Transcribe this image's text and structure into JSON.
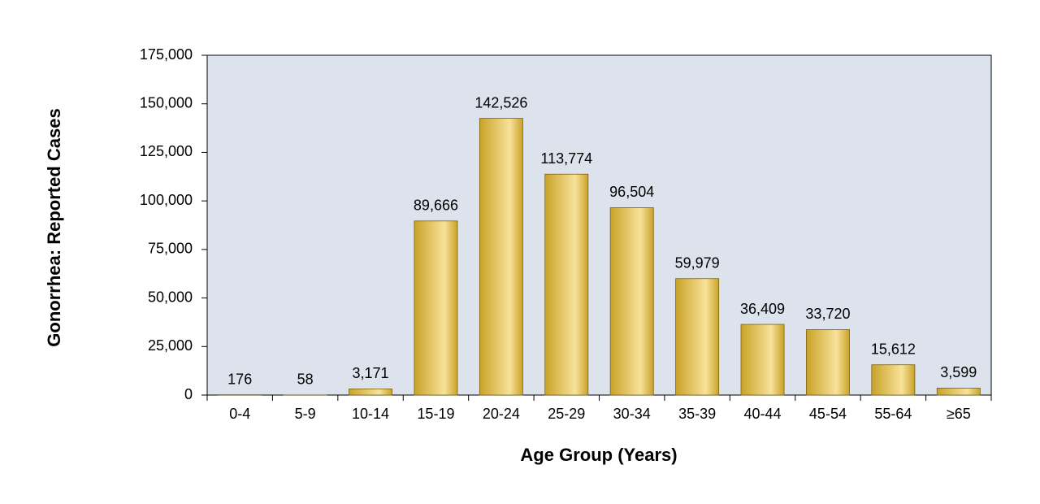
{
  "chart_data": {
    "type": "bar",
    "x_label": "Age Group (Years)",
    "y_label": "Gonorrhea: Reported Cases",
    "categories": [
      "0-4",
      "5-9",
      "10-14",
      "15-19",
      "20-24",
      "25-29",
      "30-34",
      "35-39",
      "40-44",
      "45-54",
      "55-64",
      "≥65"
    ],
    "values": [
      176,
      58,
      3171,
      89666,
      142526,
      113774,
      96504,
      59979,
      36409,
      33720,
      15612,
      3599
    ],
    "value_labels": [
      "176",
      "58",
      "3,171",
      "89,666",
      "142,526",
      "113,774",
      "96,504",
      "59,979",
      "36,409",
      "33,720",
      "15,612",
      "3,599"
    ],
    "color": "#c9a227",
    "ylim": [
      0,
      175000
    ],
    "yticks": [
      0,
      {
        "value": 25000,
        "label": "25,000"
      },
      {
        "value": 50000,
        "label": "50,000"
      },
      {
        "value": 75000,
        "label": "75,000"
      },
      {
        "value": 100000,
        "label": "100,000"
      },
      {
        "value": 125000,
        "label": "125,000"
      },
      {
        "value": 150000,
        "label": "150,000"
      },
      {
        "value": 175000,
        "label": "175,000"
      }
    ],
    "grid": false
  }
}
